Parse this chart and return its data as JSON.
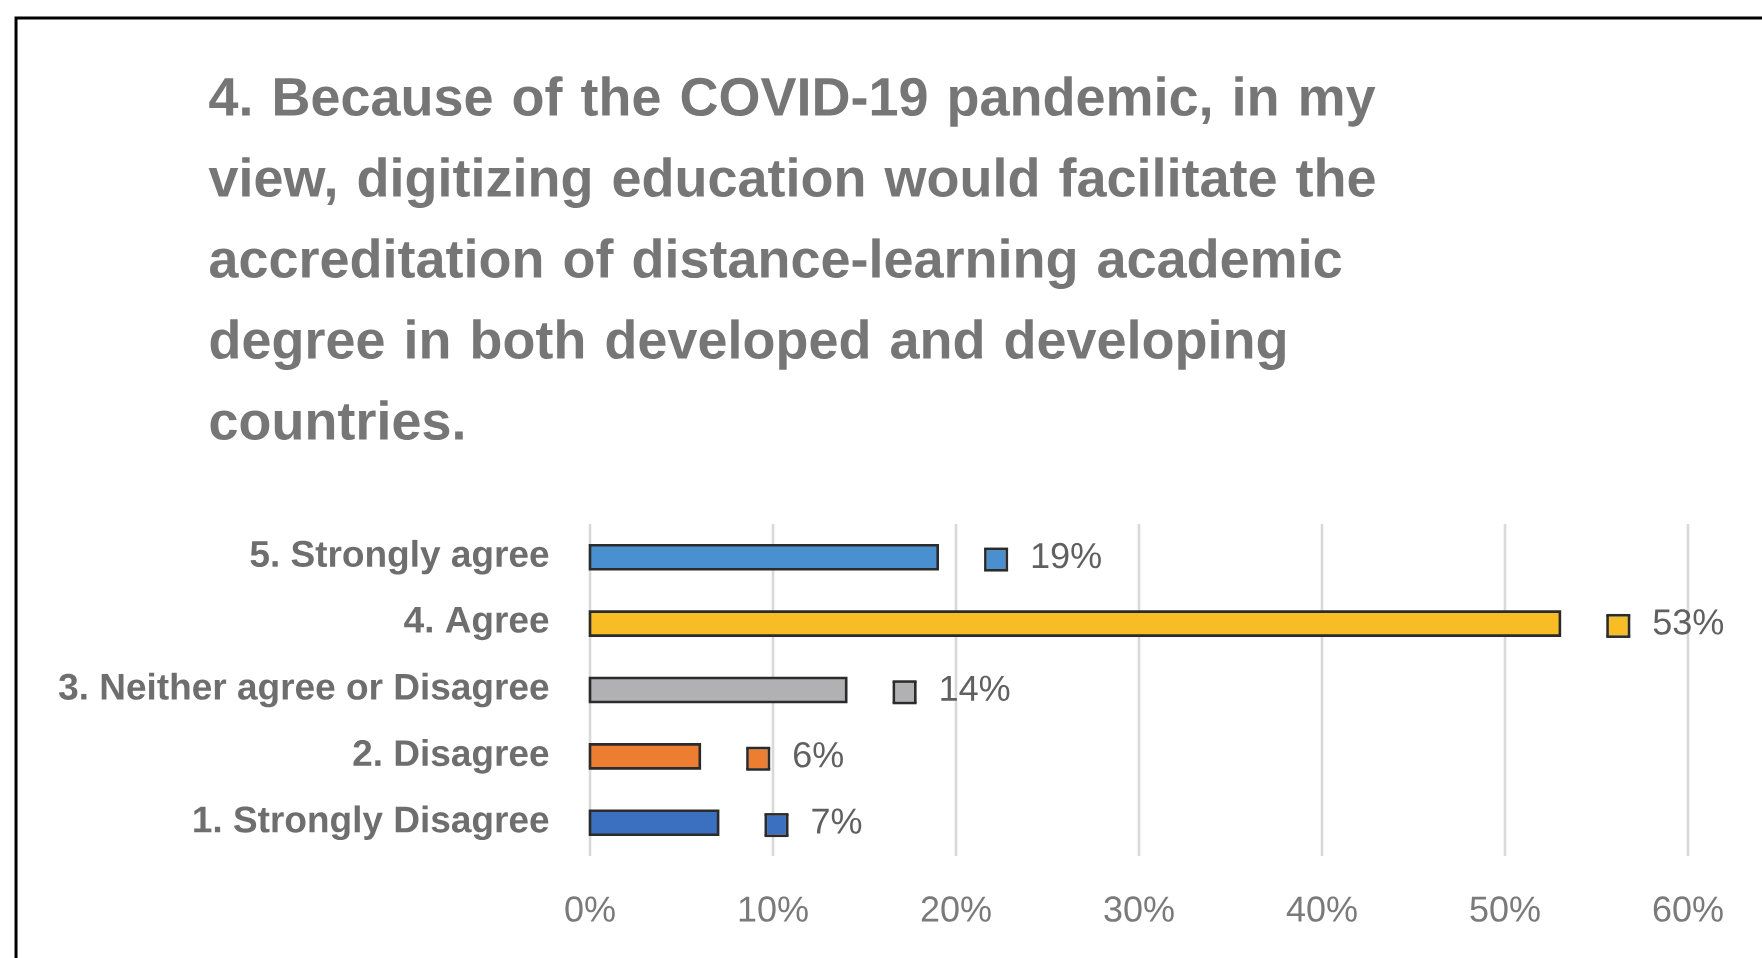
{
  "chart_data": {
    "type": "bar",
    "orientation": "horizontal",
    "title": "4. Because of the COVID-19 pandemic, in my view, digitizing education would facilitate the accreditation of distance-learning academic degree in both developed and developing countries.",
    "categories": [
      "5. Strongly agree",
      "4. Agree",
      "3. Neither agree or Disagree",
      "2. Disagree",
      "1. Strongly Disagree"
    ],
    "values": [
      19,
      53,
      14,
      6,
      7
    ],
    "colors": [
      "#4a90d0",
      "#f8bd25",
      "#b1b1b3",
      "#ed7d31",
      "#3b6fbf"
    ],
    "value_labels": [
      "19%",
      "53%",
      "14%",
      "6%",
      "7%"
    ],
    "xlim": [
      0,
      60
    ],
    "xticks": [
      {
        "value": 0,
        "label": "0%"
      },
      {
        "value": 10,
        "label": "10%"
      },
      {
        "value": 20,
        "label": "20%"
      },
      {
        "value": 30,
        "label": "30%"
      },
      {
        "value": 40,
        "label": "40%"
      },
      {
        "value": 50,
        "label": "50%"
      },
      {
        "value": 60,
        "label": "60%"
      }
    ],
    "grid": "x"
  }
}
